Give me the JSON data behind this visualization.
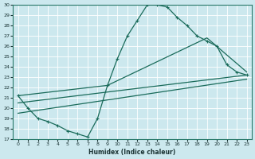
{
  "title": "",
  "xlabel": "Humidex (Indice chaleur)",
  "bg_color": "#cce8ee",
  "grid_color": "#b0d8e0",
  "line_color": "#1a6b5a",
  "xlim": [
    -0.5,
    23.5
  ],
  "ylim": [
    17,
    30
  ],
  "xticks": [
    0,
    1,
    2,
    3,
    4,
    5,
    6,
    7,
    8,
    9,
    10,
    11,
    12,
    13,
    14,
    15,
    16,
    17,
    18,
    19,
    20,
    21,
    22,
    23
  ],
  "yticks": [
    17,
    18,
    19,
    20,
    21,
    22,
    23,
    24,
    25,
    26,
    27,
    28,
    29,
    30
  ],
  "curve1_x": [
    0,
    1,
    2,
    3,
    4,
    5,
    6,
    7,
    8,
    9,
    10,
    11,
    12,
    13,
    14,
    15,
    16,
    17,
    18,
    19,
    20,
    21,
    22,
    23
  ],
  "curve1_y": [
    21.2,
    20.0,
    19.0,
    18.7,
    18.3,
    17.8,
    17.5,
    17.2,
    19.0,
    22.2,
    24.8,
    27.0,
    28.5,
    30.0,
    30.0,
    29.8,
    28.8,
    28.0,
    27.0,
    26.5,
    26.0,
    24.2,
    23.5,
    23.2
  ],
  "curve2_x": [
    0,
    9,
    19,
    23
  ],
  "curve2_y": [
    21.2,
    22.2,
    26.8,
    23.5
  ],
  "curve3_x": [
    0,
    23
  ],
  "curve3_y": [
    19.5,
    22.8
  ],
  "curve4_x": [
    0,
    23
  ],
  "curve4_y": [
    20.5,
    23.2
  ]
}
